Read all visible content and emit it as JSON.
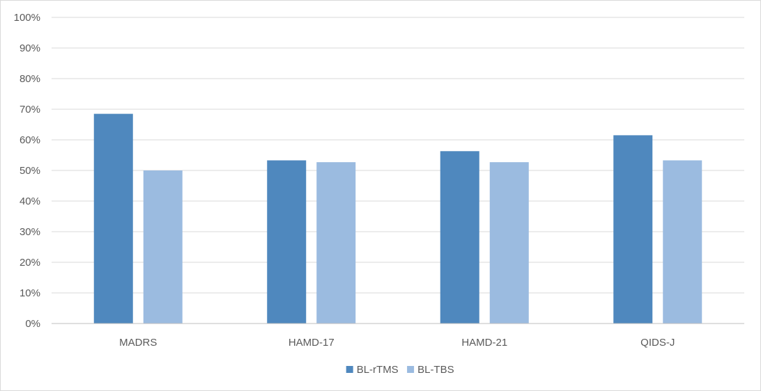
{
  "chart_data": {
    "type": "bar",
    "title": "",
    "xlabel": "",
    "ylabel": "",
    "categories": [
      "MADRS",
      "HAMD-17",
      "HAMD-21",
      "QIDS-J"
    ],
    "series": [
      {
        "name": "BL-rTMS",
        "color": "#4f88be",
        "values": [
          68.5,
          53.3,
          56.3,
          61.5
        ]
      },
      {
        "name": "BL-TBS",
        "color": "#9bbbe0",
        "values": [
          50.0,
          52.7,
          52.7,
          53.3
        ]
      }
    ],
    "ylim": [
      0,
      100
    ],
    "yticks": [
      "0%",
      "10%",
      "20%",
      "30%",
      "40%",
      "50%",
      "60%",
      "70%",
      "80%",
      "90%",
      "100%"
    ],
    "grid": true,
    "legend": "bottom-center"
  }
}
